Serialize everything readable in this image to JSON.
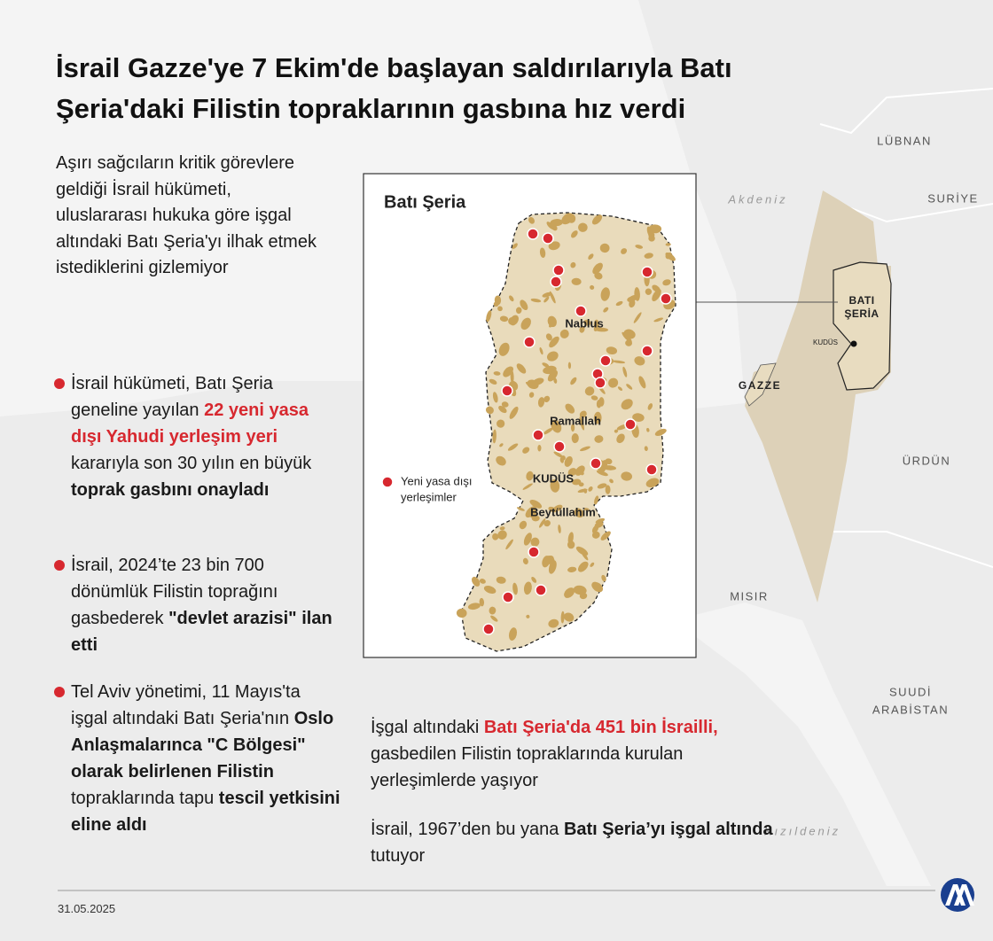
{
  "header": {
    "title_lines": [
      "İsrail Gazze'ye 7 Ekim'de başlayan saldırılarıyla Batı",
      "Şeria'daki Filistin topraklarının gasbına hız verdi"
    ]
  },
  "intro": "Aşırı sağcıların kritik görevlere geldiği İsrail hükümeti, uluslararası hukuka göre işgal altındaki Batı Şeria'yı ilhak etmek istediklerini gizlemiyor",
  "bullets": [
    [
      {
        "text": "İsrail hükümeti, Batı Şeria geneline yayılan ",
        "style": "normal"
      },
      {
        "text": "22 yeni yasa dışı Yahudi yerleşim yeri",
        "style": "red"
      },
      {
        "text": " kararıyla son 30 yılın en büyük ",
        "style": "normal"
      },
      {
        "text": "toprak gasbını onayladı",
        "style": "bold"
      }
    ],
    [
      {
        "text": "İsrail, 2024’te 23 bin 700 dönümlük Filistin toprağını gasbederek ",
        "style": "normal"
      },
      {
        "text": "\"devlet arazisi\" ilan etti",
        "style": "bold"
      }
    ],
    [
      {
        "text": "Tel Aviv yönetimi, 11 Mayıs'ta işgal altındaki Batı Şeria'nın ",
        "style": "normal"
      },
      {
        "text": "Oslo Anlaşmalarınca \"C Bölgesi\" olarak belirlenen Filistin",
        "style": "bold"
      },
      {
        "text": " topraklarında tapu ",
        "style": "normal"
      },
      {
        "text": "tescil yetkisini eline aldı",
        "style": "bold"
      }
    ]
  ],
  "facts": [
    [
      {
        "text": "İşgal altındaki ",
        "style": "normal"
      },
      {
        "text": "Batı Şeria'da 451 bin İsrailli,",
        "style": "red"
      },
      {
        "text": " gasbedilen  Filistin topraklarında kurulan yerleşimlerde yaşıyor",
        "style": "normal"
      }
    ],
    [
      {
        "text": "İsrail, 1967’den bu yana ",
        "style": "normal"
      },
      {
        "text": "Batı Şeria’yı işgal altında",
        "style": "bold"
      },
      {
        "text": " tutuyor",
        "style": "normal"
      }
    ]
  ],
  "inset_map": {
    "title": "Batı Şeria",
    "cities": [
      "Nablus",
      "Ramallah",
      "KUDÜS",
      "Beytüllahim"
    ],
    "legend_lines": [
      "Yeni yasa dışı",
      "yerleşimler"
    ]
  },
  "region_map": {
    "labels": [
      "LÜBNAN",
      "Akdeniz",
      "SURİYE",
      "GAZZE",
      "ÜRDÜN",
      "MISIR",
      "Kızıldeniz",
      "KUDÜS"
    ],
    "west_bank_lines": [
      "BATI",
      "ŞERİA"
    ],
    "saudi_lines": [
      "SUUDİ",
      "ARABİSTAN"
    ]
  },
  "footer": {
    "date": "31.05.2025"
  }
}
